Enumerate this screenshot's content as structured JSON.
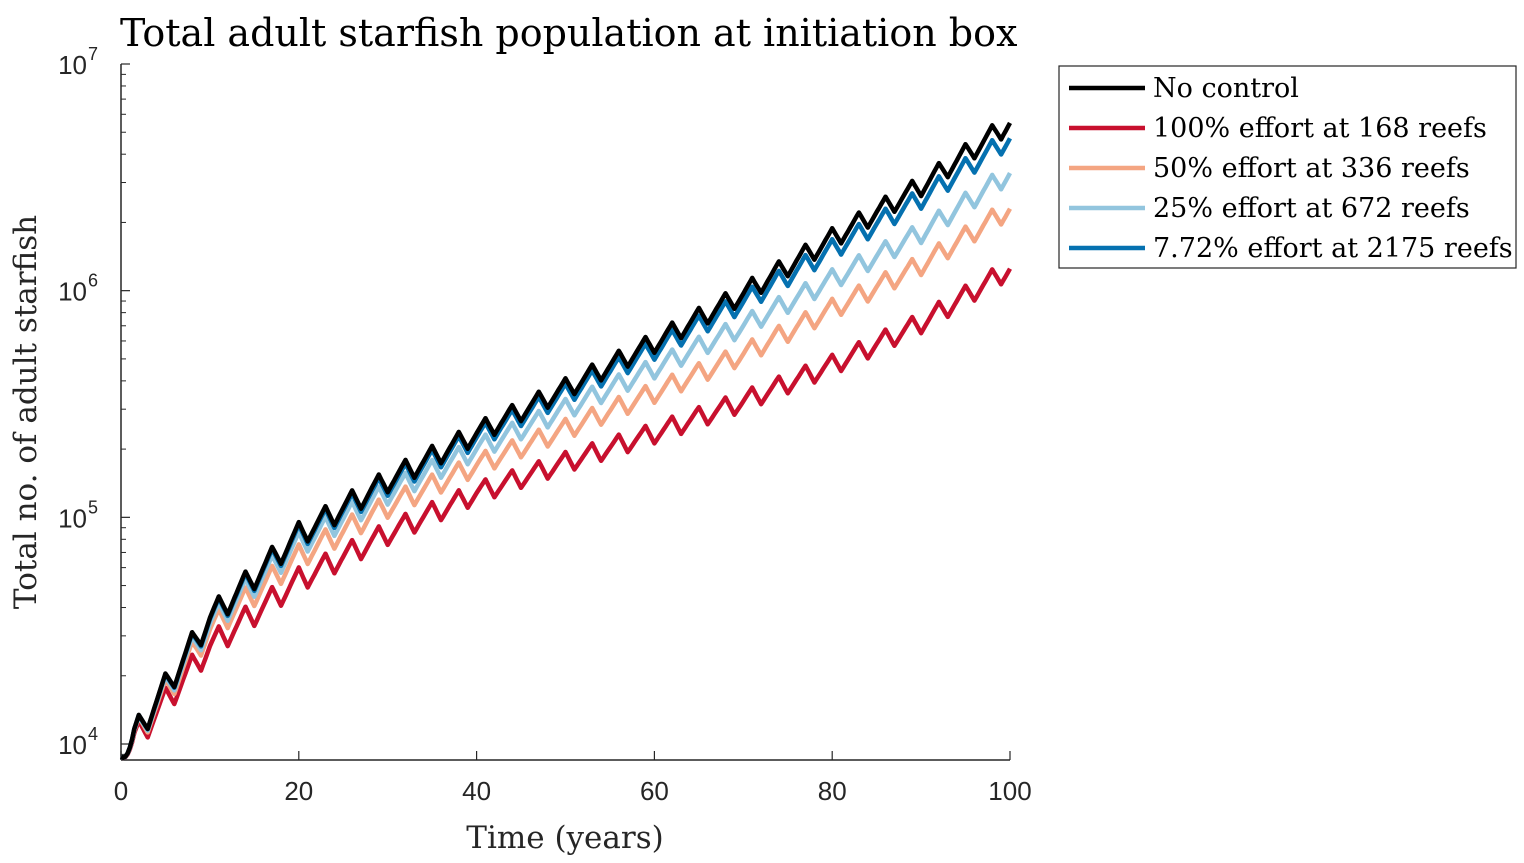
{
  "chart_data": {
    "type": "line",
    "title": "Total adult starfish population at initiation box",
    "xlabel": "Time (years)",
    "ylabel": "Total no. of adult starfish",
    "xlim": [
      0,
      100
    ],
    "ylim": [
      8500,
      10000000
    ],
    "yscale": "log",
    "xticks": [
      0,
      20,
      40,
      60,
      80,
      100
    ],
    "xtick_labels": [
      "0",
      "20",
      "40",
      "60",
      "80",
      "100"
    ],
    "yticks": [
      10000,
      100000,
      1000000,
      10000000
    ],
    "ytick_labels": [
      {
        "base": "10",
        "exp": "4"
      },
      {
        "base": "10",
        "exp": "5"
      },
      {
        "base": "10",
        "exp": "6"
      },
      {
        "base": "10",
        "exp": "7"
      }
    ],
    "grid": false,
    "legend_position": "outside-top-right",
    "x": [
      0,
      10,
      20,
      30,
      40,
      50,
      60,
      70,
      80,
      90,
      100
    ],
    "seasonal_period_years": 3,
    "series": [
      {
        "name": "No control",
        "color": "#000000",
        "values": [
          8800,
          36000,
          84000,
          145000,
          235000,
          370000,
          590000,
          970000,
          1700000,
          2900000,
          5500000
        ]
      },
      {
        "name": "100% effort at 168 reefs",
        "color": "#c8102e",
        "values": [
          8800,
          27000,
          53000,
          85000,
          128000,
          175000,
          235000,
          325000,
          470000,
          720000,
          1250000
        ]
      },
      {
        "name": "50% effort at 336 reefs",
        "color": "#f4a582",
        "values": [
          8800,
          32000,
          67000,
          112000,
          170000,
          245000,
          355000,
          525000,
          830000,
          1300000,
          2300000
        ]
      },
      {
        "name": "25% effort at 672 reefs",
        "color": "#92c5de",
        "values": [
          8800,
          34000,
          76000,
          128000,
          200000,
          300000,
          455000,
          700000,
          1120000,
          1800000,
          3300000
        ]
      },
      {
        "name": "7.72% effort at 2175 reefs",
        "color": "#0571b0",
        "values": [
          8800,
          35500,
          82000,
          140000,
          225000,
          350000,
          550000,
          890000,
          1520000,
          2550000,
          4700000
        ]
      }
    ]
  }
}
